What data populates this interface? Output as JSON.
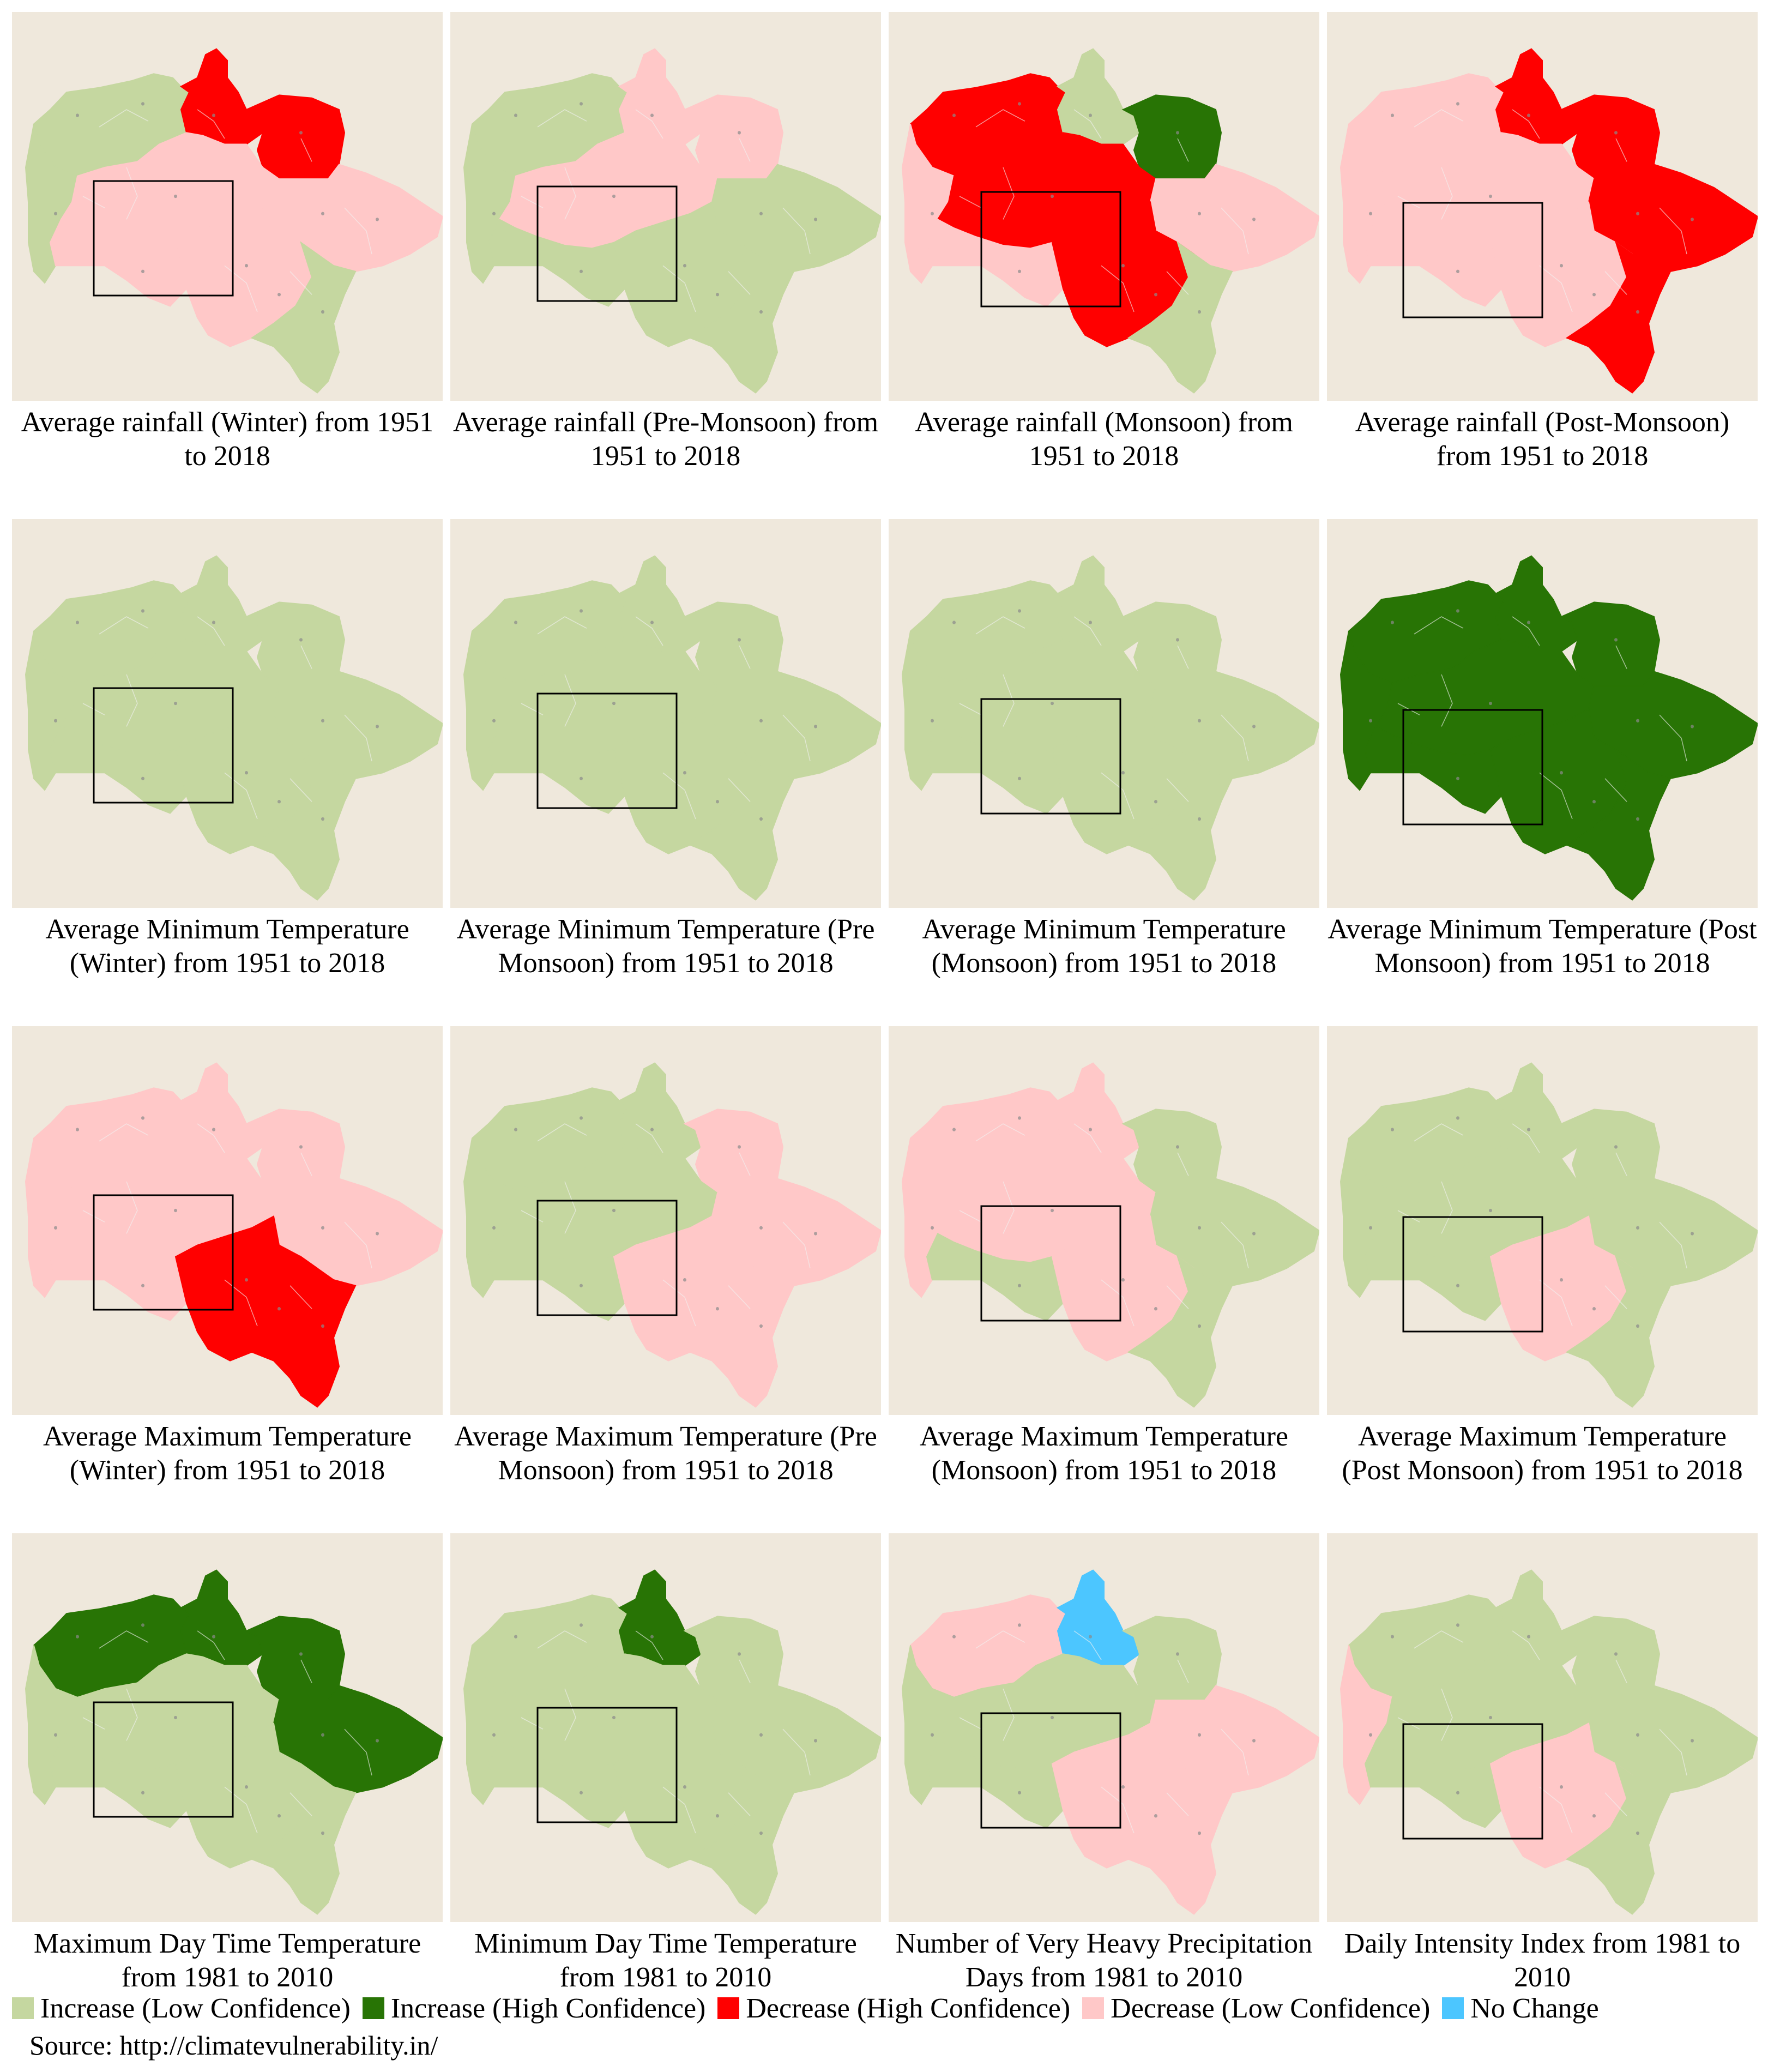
{
  "colors": {
    "increase_low": "#c5d7a0",
    "increase_high": "#287405",
    "decrease_high": "#ff0000",
    "decrease_low": "#ffc8c8",
    "no_change": "#4cc6ff",
    "panel_bg": "#efe8dc",
    "district_line": "#f2f2f2"
  },
  "panels": [
    {
      "caption": "Average rainfall (Winter) from 1951 to 2018",
      "regions": {
        "nw": "increase_low",
        "w": "increase_low",
        "n": "decrease_high",
        "ne": "decrease_high",
        "c": "decrease_low",
        "e": "decrease_low",
        "sw": "decrease_low",
        "s": "decrease_low",
        "se": "increase_low"
      }
    },
    {
      "caption": "Average rainfall (Pre-Monsoon) from 1951 to 2018",
      "regions": {
        "nw": "increase_low",
        "w": "increase_low",
        "n": "decrease_low",
        "ne": "decrease_low",
        "c": "decrease_low",
        "e": "increase_low",
        "sw": "increase_low",
        "s": "increase_low",
        "se": "increase_low"
      }
    },
    {
      "caption": "Average rainfall (Monsoon) from 1951 to 2018",
      "regions": {
        "nw": "decrease_high",
        "w": "decrease_low",
        "n": "increase_low",
        "ne": "increase_high",
        "c": "decrease_high",
        "e": "decrease_low",
        "sw": "decrease_low",
        "s": "decrease_high",
        "se": "increase_low"
      }
    },
    {
      "caption": "Average rainfall (Post-Monsoon) from 1951 to 2018",
      "regions": {
        "nw": "decrease_low",
        "w": "decrease_low",
        "n": "decrease_high",
        "ne": "decrease_high",
        "c": "decrease_low",
        "e": "decrease_high",
        "sw": "decrease_low",
        "s": "decrease_low",
        "se": "decrease_high"
      }
    },
    {
      "caption": "Average Minimum Temperature (Winter) from 1951 to 2018",
      "regions": {
        "nw": "increase_low",
        "w": "increase_low",
        "n": "increase_low",
        "ne": "increase_low",
        "c": "increase_low",
        "e": "increase_low",
        "sw": "increase_low",
        "s": "increase_low",
        "se": "increase_low"
      }
    },
    {
      "caption": "Average Minimum Temperature (Pre Monsoon) from 1951 to 2018",
      "regions": {
        "nw": "increase_low",
        "w": "increase_low",
        "n": "increase_low",
        "ne": "increase_low",
        "c": "increase_low",
        "e": "increase_low",
        "sw": "increase_low",
        "s": "increase_low",
        "se": "increase_low"
      }
    },
    {
      "caption": "Average Minimum Temperature (Monsoon) from 1951 to 2018",
      "regions": {
        "nw": "increase_low",
        "w": "increase_low",
        "n": "increase_low",
        "ne": "increase_low",
        "c": "increase_low",
        "e": "increase_low",
        "sw": "increase_low",
        "s": "increase_low",
        "se": "increase_low"
      }
    },
    {
      "caption": "Average Minimum Temperature (Post Monsoon) from 1951 to 2018",
      "regions": {
        "nw": "increase_high",
        "w": "increase_high",
        "n": "increase_high",
        "ne": "increase_high",
        "c": "increase_high",
        "e": "increase_high",
        "sw": "increase_high",
        "s": "increase_high",
        "se": "increase_high"
      }
    },
    {
      "caption": "Average Maximum Temperature (Winter) from 1951 to 2018",
      "regions": {
        "nw": "decrease_low",
        "w": "decrease_low",
        "n": "decrease_low",
        "ne": "decrease_low",
        "c": "decrease_low",
        "e": "decrease_low",
        "sw": "decrease_low",
        "s": "decrease_high",
        "se": "decrease_high"
      }
    },
    {
      "caption": "Average Maximum Temperature (Pre Monsoon) from 1951 to 2018",
      "regions": {
        "nw": "increase_low",
        "w": "increase_low",
        "n": "increase_low",
        "ne": "decrease_low",
        "c": "increase_low",
        "e": "decrease_low",
        "sw": "increase_low",
        "s": "decrease_low",
        "se": "decrease_low"
      }
    },
    {
      "caption": "Average Maximum Temperature (Monsoon) from 1951 to 2018",
      "regions": {
        "nw": "decrease_low",
        "w": "decrease_low",
        "n": "decrease_low",
        "ne": "increase_low",
        "c": "decrease_low",
        "e": "increase_low",
        "sw": "increase_low",
        "s": "decrease_low",
        "se": "increase_low"
      }
    },
    {
      "caption": "Average Maximum Temperature (Post Monsoon) from 1951 to 2018",
      "regions": {
        "nw": "increase_low",
        "w": "increase_low",
        "n": "increase_low",
        "ne": "increase_low",
        "c": "increase_low",
        "e": "increase_low",
        "sw": "increase_low",
        "s": "decrease_low",
        "se": "increase_low"
      }
    },
    {
      "caption": "Maximum Day Time Temperature from 1981 to 2010",
      "regions": {
        "nw": "increase_high",
        "w": "increase_low",
        "n": "increase_high",
        "ne": "increase_high",
        "c": "increase_low",
        "e": "increase_high",
        "sw": "increase_low",
        "s": "increase_low",
        "se": "increase_low"
      }
    },
    {
      "caption": "Minimum Day Time Temperature from 1981 to 2010",
      "regions": {
        "nw": "increase_low",
        "w": "increase_low",
        "n": "increase_high",
        "ne": "increase_low",
        "c": "increase_low",
        "e": "increase_low",
        "sw": "increase_low",
        "s": "increase_low",
        "se": "increase_low"
      }
    },
    {
      "caption": "Number of Very Heavy Precipitation Days from 1981 to 2010",
      "regions": {
        "nw": "decrease_low",
        "w": "increase_low",
        "n": "no_change",
        "ne": "increase_low",
        "c": "increase_low",
        "e": "decrease_low",
        "sw": "increase_low",
        "s": "decrease_low",
        "se": "decrease_low"
      }
    },
    {
      "caption": "Daily Intensity Index from 1981 to 2010",
      "regions": {
        "nw": "increase_low",
        "w": "decrease_low",
        "n": "increase_low",
        "ne": "increase_low",
        "c": "increase_low",
        "e": "increase_low",
        "sw": "increase_low",
        "s": "decrease_low",
        "se": "increase_low"
      }
    }
  ],
  "legend": [
    {
      "label": "Increase (Low Confidence)",
      "color_key": "increase_low"
    },
    {
      "label": "Increase (High Confidence)",
      "color_key": "increase_high"
    },
    {
      "label": "Decrease (High Confidence)",
      "color_key": "decrease_high"
    },
    {
      "label": "Decrease (Low Confidence)",
      "color_key": "decrease_low"
    },
    {
      "label": "No Change",
      "color_key": "no_change"
    }
  ],
  "source": "Source: http://climatevulnerability.in/"
}
